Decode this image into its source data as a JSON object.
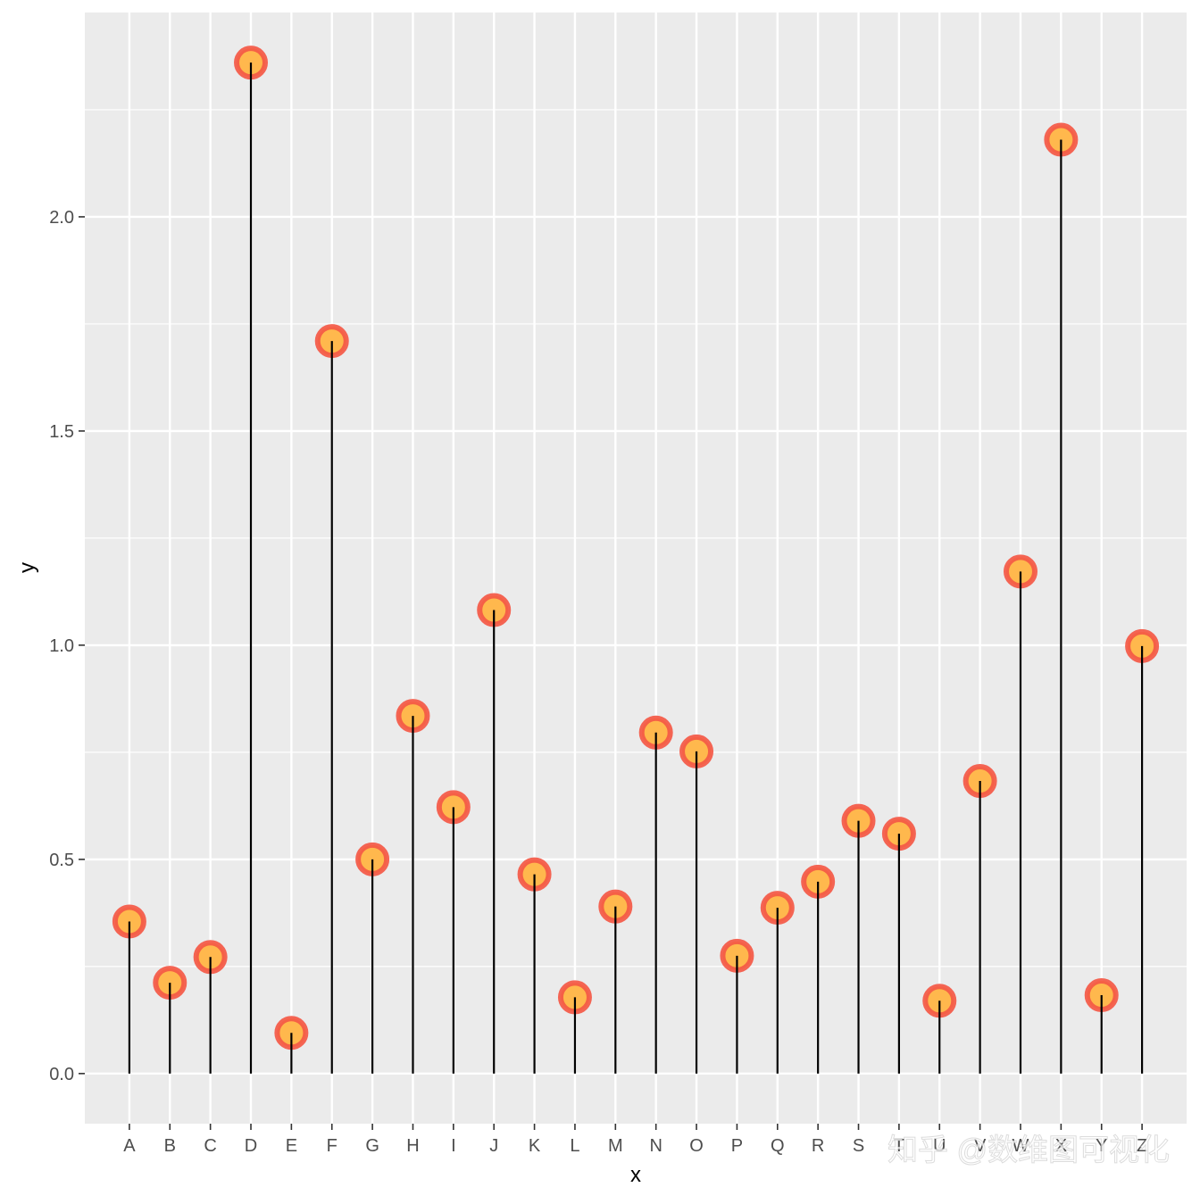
{
  "chart_data": {
    "type": "lollipop",
    "categories": [
      "A",
      "B",
      "C",
      "D",
      "E",
      "F",
      "G",
      "H",
      "I",
      "J",
      "K",
      "L",
      "M",
      "N",
      "O",
      "P",
      "Q",
      "R",
      "S",
      "T",
      "U",
      "V",
      "W",
      "X",
      "Y",
      "Z"
    ],
    "values": [
      0.355,
      0.212,
      0.272,
      2.36,
      0.095,
      1.71,
      0.5,
      0.835,
      0.622,
      1.082,
      0.465,
      0.178,
      0.39,
      0.796,
      0.752,
      0.275,
      0.387,
      0.448,
      0.59,
      0.56,
      0.17,
      0.683,
      1.172,
      2.18,
      0.183,
      0.998
    ],
    "xlabel": "x",
    "ylabel": "y",
    "ylim": [
      -0.117,
      2.477
    ],
    "yticks": [
      0.0,
      0.5,
      1.0,
      1.5,
      2.0
    ],
    "ytick_labels": [
      "0.0",
      "0.5",
      "1.0",
      "1.5",
      "2.0"
    ],
    "grid": true,
    "colors": {
      "panel_background": "#EBEBEB",
      "grid_line": "#FFFFFF",
      "stem": "#000000",
      "point_fill": "#FFB84D",
      "point_stroke": "#F45845",
      "tick_text": "#4D4D4D",
      "axis_title": "#000000"
    }
  },
  "watermark": "知乎 @数维图可视化"
}
